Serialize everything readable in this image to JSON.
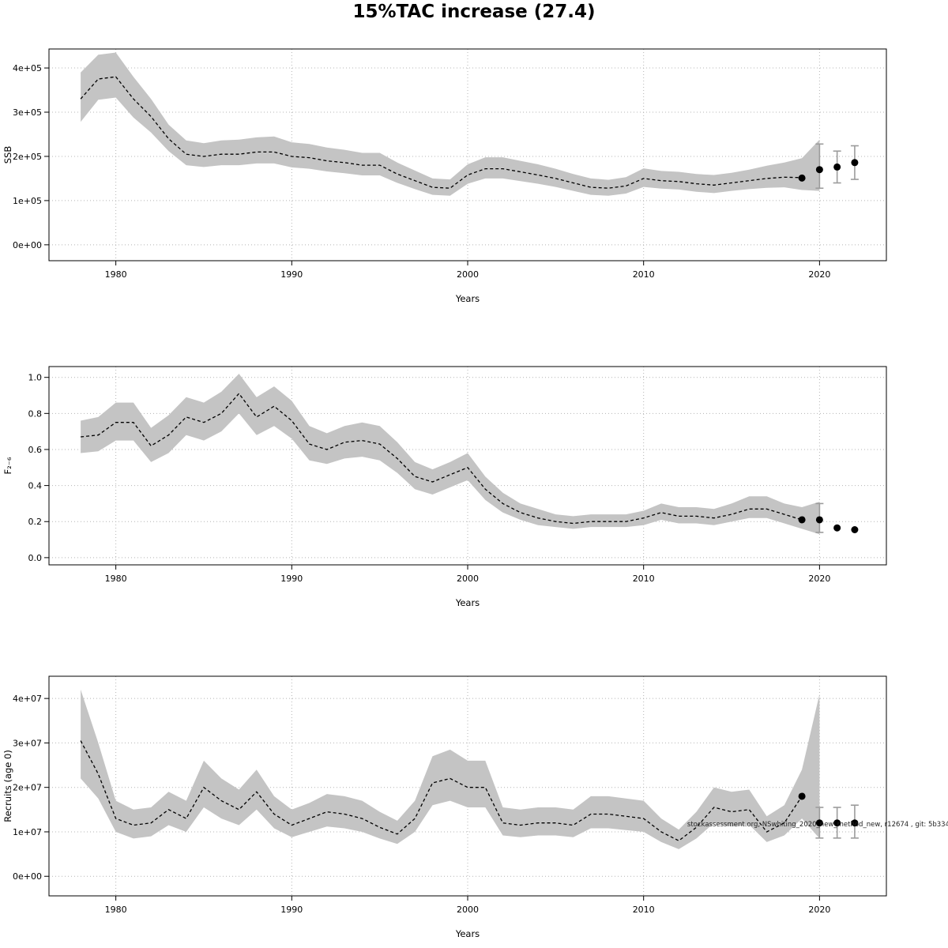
{
  "title": "15%TAC increase (27.4)",
  "watermark": "stockassessment.org, NSwhiting_2020_new_method_new, r12674 , git: 5b334",
  "chart_data": [
    {
      "type": "line",
      "name": "ssb",
      "ylabel": "SSB",
      "xlabel": "Years",
      "x_ticks": [
        1980,
        1990,
        2000,
        2010,
        2020
      ],
      "x_tick_labels": [
        "1980",
        "1990",
        "2000",
        "2010",
        "2020"
      ],
      "y_ticks": [
        0,
        100000,
        200000,
        300000,
        400000
      ],
      "y_tick_labels": [
        "0e+00",
        "1e+05",
        "2e+05",
        "3e+05",
        "4e+05"
      ],
      "xlim": [
        1976.2,
        2023.8
      ],
      "ylim": [
        -36000,
        443000
      ],
      "grid": true,
      "years_start": 1978,
      "median": [
        330000,
        375000,
        380000,
        330000,
        290000,
        240000,
        205000,
        200000,
        205000,
        205000,
        210000,
        210000,
        200000,
        197000,
        190000,
        186000,
        180000,
        180000,
        160000,
        145000,
        130000,
        128000,
        158000,
        172000,
        172000,
        165000,
        158000,
        150000,
        140000,
        130000,
        128000,
        133000,
        150000,
        145000,
        143000,
        138000,
        135000,
        140000,
        145000,
        150000,
        153000,
        152000
      ],
      "band": {
        "years_start": 1978,
        "upper": [
          390000,
          430000,
          435000,
          380000,
          330000,
          272000,
          236000,
          230000,
          236000,
          238000,
          243000,
          245000,
          232000,
          228000,
          220000,
          215000,
          208000,
          208000,
          186000,
          168000,
          150000,
          148000,
          182000,
          198000,
          198000,
          190000,
          182000,
          172000,
          160000,
          150000,
          147000,
          153000,
          173000,
          167000,
          165000,
          160000,
          158000,
          163000,
          170000,
          179000,
          186000,
          196000,
          238000
        ],
        "lower": [
          278000,
          328000,
          333000,
          288000,
          254000,
          212000,
          180000,
          176000,
          180000,
          180000,
          184000,
          184000,
          175000,
          172000,
          166000,
          162000,
          157000,
          157000,
          140000,
          126000,
          113000,
          111000,
          138000,
          150000,
          150000,
          144000,
          138000,
          131000,
          122000,
          113000,
          111000,
          116000,
          131000,
          127000,
          125000,
          120000,
          117000,
          122000,
          126000,
          129000,
          130000,
          124000,
          122000
        ]
      },
      "forecast": {
        "years": [
          2019,
          2020,
          2021,
          2022
        ],
        "values": [
          151000,
          170000,
          176000,
          186000
        ],
        "lo": [
          151000,
          128000,
          140000,
          148000
        ],
        "hi": [
          151000,
          228000,
          212000,
          224000
        ]
      }
    },
    {
      "type": "line",
      "name": "fbar",
      "ylabel": "F₂₋₆",
      "xlabel": "Years",
      "x_ticks": [
        1980,
        1990,
        2000,
        2010,
        2020
      ],
      "x_tick_labels": [
        "1980",
        "1990",
        "2000",
        "2010",
        "2020"
      ],
      "y_ticks": [
        0.0,
        0.2,
        0.4,
        0.6,
        0.8,
        1.0
      ],
      "y_tick_labels": [
        "0.0",
        "0.2",
        "0.4",
        "0.6",
        "0.8",
        "1.0"
      ],
      "xlim": [
        1976.2,
        2023.8
      ],
      "ylim": [
        -0.04,
        1.06
      ],
      "grid": true,
      "years_start": 1978,
      "median": [
        0.67,
        0.68,
        0.75,
        0.75,
        0.62,
        0.68,
        0.78,
        0.75,
        0.8,
        0.91,
        0.78,
        0.84,
        0.76,
        0.63,
        0.6,
        0.64,
        0.65,
        0.63,
        0.55,
        0.45,
        0.42,
        0.46,
        0.5,
        0.38,
        0.3,
        0.25,
        0.22,
        0.2,
        0.19,
        0.2,
        0.2,
        0.2,
        0.22,
        0.25,
        0.23,
        0.23,
        0.22,
        0.24,
        0.27,
        0.27,
        0.24,
        0.21
      ],
      "band": {
        "years_start": 1978,
        "upper": [
          0.76,
          0.78,
          0.86,
          0.86,
          0.72,
          0.79,
          0.89,
          0.86,
          0.92,
          1.02,
          0.89,
          0.95,
          0.87,
          0.73,
          0.69,
          0.73,
          0.75,
          0.73,
          0.64,
          0.53,
          0.49,
          0.53,
          0.58,
          0.45,
          0.36,
          0.3,
          0.27,
          0.24,
          0.23,
          0.24,
          0.24,
          0.24,
          0.26,
          0.3,
          0.28,
          0.28,
          0.27,
          0.3,
          0.34,
          0.34,
          0.3,
          0.28,
          0.31
        ],
        "lower": [
          0.58,
          0.59,
          0.65,
          0.65,
          0.53,
          0.58,
          0.68,
          0.65,
          0.7,
          0.8,
          0.68,
          0.73,
          0.66,
          0.54,
          0.52,
          0.55,
          0.56,
          0.54,
          0.47,
          0.38,
          0.35,
          0.39,
          0.43,
          0.32,
          0.25,
          0.21,
          0.18,
          0.17,
          0.16,
          0.17,
          0.17,
          0.17,
          0.18,
          0.21,
          0.19,
          0.19,
          0.18,
          0.2,
          0.22,
          0.22,
          0.19,
          0.16,
          0.13
        ]
      },
      "forecast": {
        "years": [
          2019,
          2020,
          2021,
          2022
        ],
        "values": [
          0.21,
          0.21,
          0.165,
          0.155
        ],
        "lo": [
          0.21,
          0.14,
          0.165,
          0.155
        ],
        "hi": [
          0.21,
          0.3,
          0.165,
          0.155
        ]
      }
    },
    {
      "type": "line",
      "name": "recruits",
      "ylabel": "Recruits (age 0)",
      "xlabel": "Years",
      "x_ticks": [
        1980,
        1990,
        2000,
        2010,
        2020
      ],
      "x_tick_labels": [
        "1980",
        "1990",
        "2000",
        "2010",
        "2020"
      ],
      "y_ticks": [
        0,
        10000000,
        20000000,
        30000000,
        40000000
      ],
      "y_tick_labels": [
        "0e+00",
        "1e+07",
        "2e+07",
        "3e+07",
        "4e+07"
      ],
      "xlim": [
        1976.2,
        2023.8
      ],
      "ylim": [
        -4400000,
        45000000
      ],
      "grid": true,
      "years_start": 1978,
      "median": [
        30500000,
        23000000,
        13000000,
        11500000,
        12000000,
        15000000,
        13000000,
        20000000,
        17000000,
        15000000,
        19000000,
        14000000,
        11500000,
        13000000,
        14500000,
        14000000,
        13000000,
        11000000,
        9500000,
        13000000,
        21000000,
        22000000,
        20000000,
        20000000,
        12000000,
        11500000,
        12000000,
        12000000,
        11500000,
        14000000,
        14000000,
        13500000,
        13000000,
        10000000,
        8000000,
        11000000,
        15500000,
        14500000,
        15000000,
        10000000,
        12000000,
        18000000
      ],
      "band": {
        "years_start": 1978,
        "upper": [
          42000000,
          30000000,
          17000000,
          15000000,
          15500000,
          19000000,
          17000000,
          26000000,
          22000000,
          19500000,
          24000000,
          18000000,
          15000000,
          16500000,
          18500000,
          18000000,
          17000000,
          14500000,
          12500000,
          17000000,
          27000000,
          28500000,
          26000000,
          26000000,
          15500000,
          15000000,
          15500000,
          15500000,
          15000000,
          18000000,
          18000000,
          17500000,
          17000000,
          13000000,
          10500000,
          14500000,
          20000000,
          19000000,
          19500000,
          13500000,
          16000000,
          24000000,
          41000000
        ],
        "lower": [
          22000000,
          17500000,
          10000000,
          8500000,
          9000000,
          11500000,
          10000000,
          15500000,
          13000000,
          11500000,
          15000000,
          10800000,
          8800000,
          10000000,
          11200000,
          10800000,
          10000000,
          8500000,
          7300000,
          10000000,
          16000000,
          17000000,
          15500000,
          15500000,
          9200000,
          8800000,
          9200000,
          9200000,
          8800000,
          10800000,
          10800000,
          10400000,
          10000000,
          7700000,
          6100000,
          8500000,
          12000000,
          11200000,
          11600000,
          7700000,
          9200000,
          13000000,
          8500000
        ]
      },
      "forecast": {
        "years": [
          2019,
          2020,
          2021,
          2022
        ],
        "values": [
          18000000,
          12000000,
          12000000,
          12000000
        ],
        "lo": [
          18000000,
          8600000,
          8600000,
          8600000
        ],
        "hi": [
          18000000,
          15500000,
          15500000,
          16000000
        ]
      }
    }
  ]
}
